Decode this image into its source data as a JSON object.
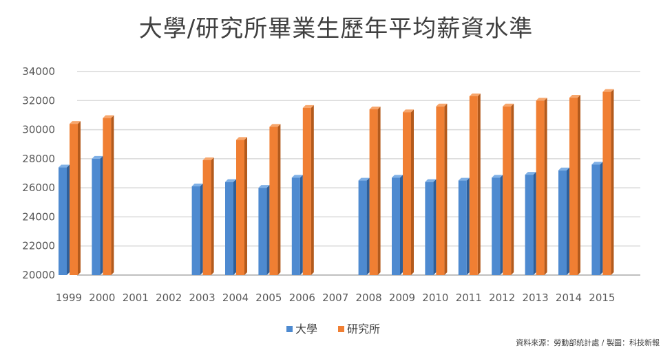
{
  "chart_data": {
    "type": "bar",
    "title": "大學/研究所畢業生歷年平均薪資水準",
    "categories": [
      "1999",
      "2000",
      "2001",
      "2002",
      "2003",
      "2004",
      "2005",
      "2006",
      "2007",
      "2008",
      "2009",
      "2010",
      "2011",
      "2012",
      "2013",
      "2014",
      "2015"
    ],
    "series": [
      {
        "name": "大學",
        "color": "#4a86c8",
        "values": [
          27400,
          28000,
          null,
          null,
          26100,
          26400,
          26000,
          26700,
          null,
          26500,
          26700,
          26400,
          26500,
          26700,
          26900,
          27200,
          27600
        ]
      },
      {
        "name": "研究所",
        "color": "#ee7d31",
        "values": [
          30400,
          30800,
          null,
          null,
          27900,
          29300,
          30200,
          31500,
          null,
          31400,
          31200,
          31600,
          32300,
          31600,
          32000,
          32200,
          32600
        ]
      }
    ],
    "ylim": [
      20000,
      34000
    ],
    "yticks": [
      20000,
      22000,
      24000,
      26000,
      28000,
      30000,
      32000,
      34000
    ],
    "grid": true,
    "legend": "bottom",
    "source_note": "資料來源：勞動部統計處 / 製圖：科技新報"
  }
}
